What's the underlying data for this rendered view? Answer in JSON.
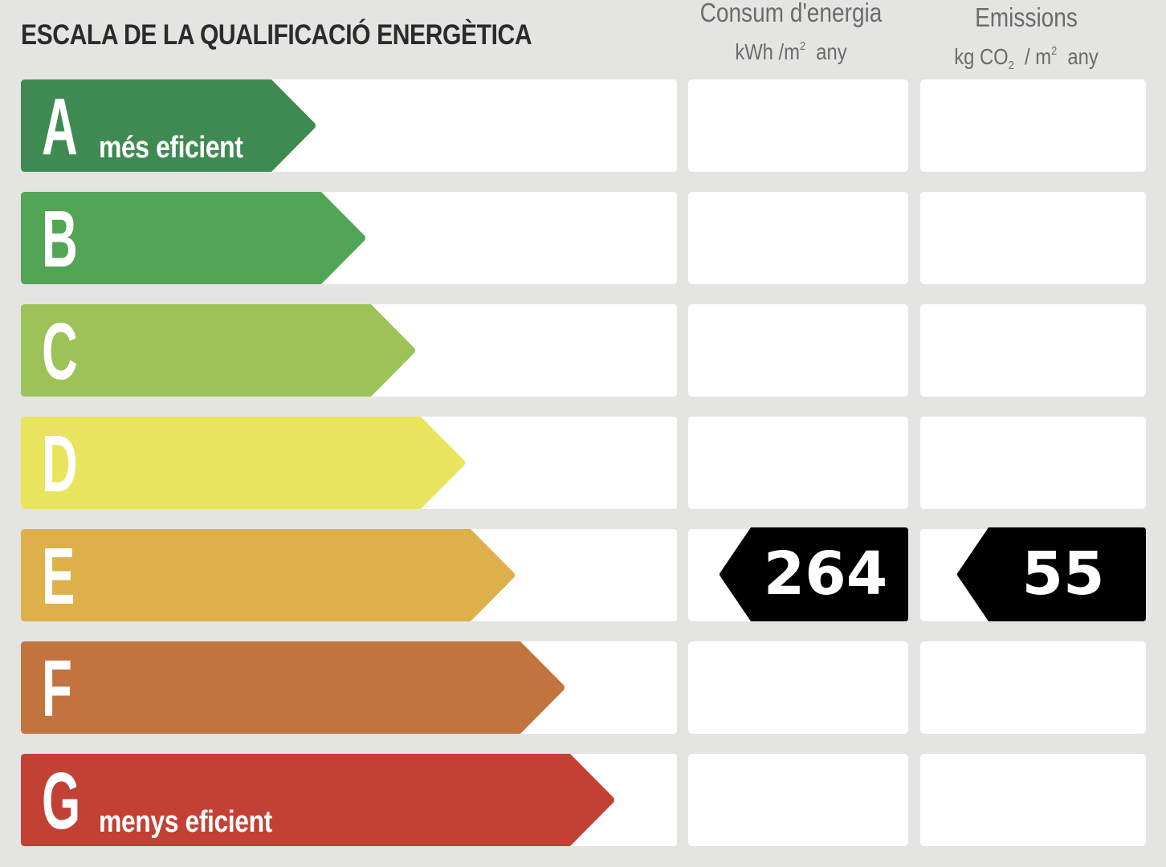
{
  "title": "ESCALA DE LA QUALIFICACIÓ ENERGÈTICA",
  "columns": {
    "consum": {
      "line1": "Consum d'energia",
      "unit_a": "kWh /m",
      "unit_sup": "2",
      "unit_b": "any"
    },
    "emissions": {
      "line1": "Emissions",
      "unit_a": "kg CO",
      "unit_sub": "2",
      "unit_mid": " / m",
      "unit_sup": "2",
      "unit_b": "any"
    }
  },
  "ratings": [
    {
      "letter": "A",
      "label": "més eficient",
      "color": "#3f8a52"
    },
    {
      "letter": "B",
      "label": "",
      "color": "#52a555"
    },
    {
      "letter": "C",
      "label": "",
      "color": "#9dc257"
    },
    {
      "letter": "D",
      "label": "",
      "color": "#e9e45d"
    },
    {
      "letter": "E",
      "label": "",
      "color": "#deb04a"
    },
    {
      "letter": "F",
      "label": "",
      "color": "#c2733e"
    },
    {
      "letter": "G",
      "label": "menys eficient",
      "color": "#c34035"
    }
  ],
  "result": {
    "rating": "E",
    "consumption_value": "264",
    "emissions_value": "55",
    "marker_color": "#000000"
  }
}
